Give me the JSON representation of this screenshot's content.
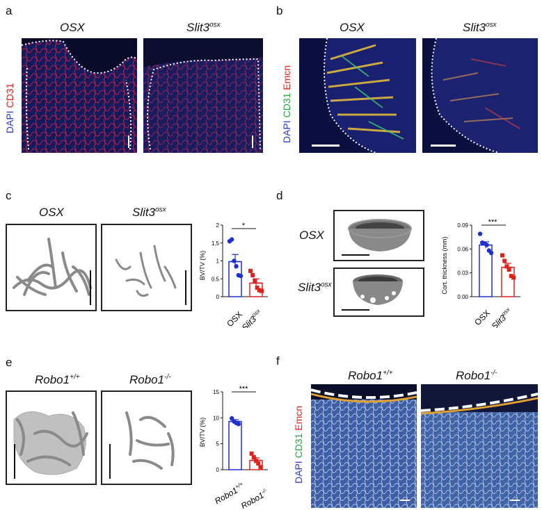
{
  "panels": {
    "a": {
      "letter": "a",
      "titles": [
        "OSX",
        "Slit3"
      ],
      "title_sup": [
        "",
        "osx"
      ],
      "stain": [
        {
          "text": "DAPI",
          "color": "#2b3bd6"
        },
        {
          "text": "CD31",
          "color": "#e0201b"
        }
      ]
    },
    "b": {
      "letter": "b",
      "titles": [
        "OSX",
        "Slit3"
      ],
      "title_sup": [
        "",
        "osx"
      ],
      "stain": [
        {
          "text": "DAPI",
          "color": "#2b3bd6"
        },
        {
          "text": "CD31",
          "color": "#1fa53a"
        },
        {
          "text": "Emcn",
          "color": "#e0201b"
        }
      ]
    },
    "c": {
      "letter": "c",
      "titles": [
        "OSX",
        "Slit3"
      ],
      "title_sup": [
        "",
        "osx"
      ]
    },
    "d": {
      "letter": "d",
      "labels": [
        "OSX",
        "Slit3"
      ],
      "label_sup": [
        "",
        "osx"
      ]
    },
    "e": {
      "letter": "e",
      "titles": [
        "Robo1",
        "Robo1"
      ],
      "title_sup": [
        "+/+",
        "-/-"
      ]
    },
    "f": {
      "letter": "f",
      "titles": [
        "Robo1",
        "Robo1"
      ],
      "title_sup": [
        "+/+",
        "-/-"
      ],
      "stain": [
        {
          "text": "DAPI",
          "color": "#2b3bd6"
        },
        {
          "text": "CD31",
          "color": "#1fa53a"
        },
        {
          "text": "Emcn",
          "color": "#e0201b"
        }
      ]
    }
  },
  "colors": {
    "control": "#1f2fd0",
    "mutant": "#e0201b"
  },
  "chart_data": [
    {
      "id": "c",
      "type": "bar",
      "ylabel": "BV/TV (%)",
      "ylim": [
        0,
        2
      ],
      "yticks": [
        "0",
        "0.5",
        "1",
        "1.5",
        "2"
      ],
      "ytick_values": [
        0,
        0.5,
        1,
        1.5,
        2
      ],
      "categories": [
        "OSX",
        "Slit3"
      ],
      "category_sup": [
        "",
        "osx"
      ],
      "values": [
        0.98,
        0.38
      ],
      "errors": [
        0.2,
        0.12
      ],
      "points": [
        [
          1.55,
          1.6,
          1.0,
          0.85,
          0.6,
          0.58
        ],
        [
          0.72,
          0.6,
          0.45,
          0.25,
          0.18,
          0.16
        ]
      ],
      "significance": "*"
    },
    {
      "id": "d",
      "type": "bar",
      "ylabel": "Cort. thickness (mm)",
      "ylim": [
        0,
        0.09
      ],
      "yticks": [
        "0.00",
        "0.03",
        "0.06",
        "0.09"
      ],
      "ytick_values": [
        0,
        0.03,
        0.06,
        0.09
      ],
      "categories": [
        "OSX",
        "Slit3"
      ],
      "category_sup": [
        "",
        "osx"
      ],
      "values": [
        0.065,
        0.037
      ],
      "errors": [
        0.004,
        0.005
      ],
      "points": [
        [
          0.079,
          0.068,
          0.067,
          0.065,
          0.058,
          0.055
        ],
        [
          0.052,
          0.045,
          0.038,
          0.034,
          0.026,
          0.024
        ]
      ],
      "significance": "***"
    },
    {
      "id": "e",
      "type": "bar",
      "ylabel": "BV/TV (%)",
      "ylim": [
        0,
        15
      ],
      "yticks": [
        "0",
        "5",
        "10",
        "15"
      ],
      "ytick_values": [
        0,
        5,
        10,
        15
      ],
      "categories": [
        "Robo1",
        "Robo1"
      ],
      "category_sup": [
        "+/+",
        "-/-"
      ],
      "values": [
        9.3,
        1.8
      ],
      "errors": [
        0.35,
        0.5
      ],
      "points": [
        [
          9.9,
          9.3,
          9.0,
          8.8
        ],
        [
          3.1,
          2.4,
          1.7,
          1.2,
          0.5
        ]
      ],
      "significance": "***"
    }
  ]
}
